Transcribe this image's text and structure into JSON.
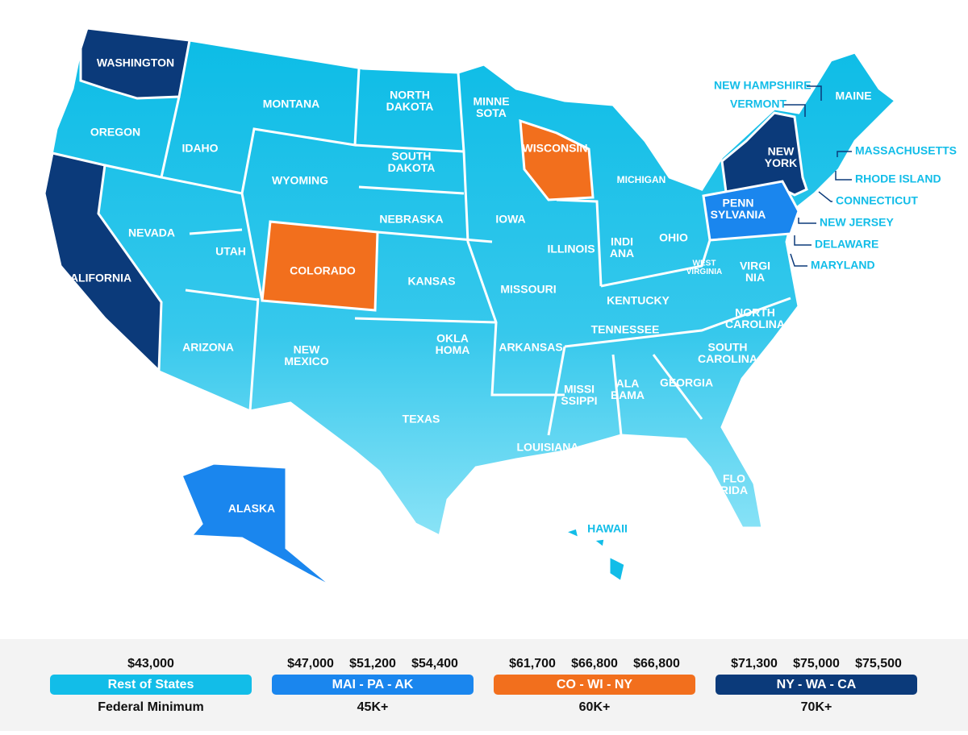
{
  "map": {
    "states": [
      {
        "lines": [
          "WASHINGTON"
        ]
      },
      {
        "lines": [
          "OREGON"
        ]
      },
      {
        "lines": [
          "CALIFORNIA"
        ]
      },
      {
        "lines": [
          "IDAHO"
        ]
      },
      {
        "lines": [
          "NEVADA"
        ]
      },
      {
        "lines": [
          "MONTANA"
        ]
      },
      {
        "lines": [
          "WYOMING"
        ]
      },
      {
        "lines": [
          "UTAH"
        ]
      },
      {
        "lines": [
          "ARIZONA"
        ]
      },
      {
        "lines": [
          "COLORADO"
        ]
      },
      {
        "lines": [
          "NEW",
          "MEXICO"
        ]
      },
      {
        "lines": [
          "NORTH",
          "DAKOTA"
        ]
      },
      {
        "lines": [
          "SOUTH",
          "DAKOTA"
        ]
      },
      {
        "lines": [
          "NEBRASKA"
        ]
      },
      {
        "lines": [
          "KANSAS"
        ]
      },
      {
        "lines": [
          "OKLA",
          "HOMA"
        ]
      },
      {
        "lines": [
          "TEXAS"
        ]
      },
      {
        "lines": [
          "MINNE",
          "SOTA"
        ]
      },
      {
        "lines": [
          "IOWA"
        ]
      },
      {
        "lines": [
          "MISSOURI"
        ]
      },
      {
        "lines": [
          "ARKANSAS"
        ]
      },
      {
        "lines": [
          "LOUISIANA"
        ]
      },
      {
        "lines": [
          "WISCONSIN"
        ]
      },
      {
        "lines": [
          "ILLINOIS"
        ]
      },
      {
        "lines": [
          "MICHIGAN"
        ]
      },
      {
        "lines": [
          "INDI",
          "ANA"
        ]
      },
      {
        "lines": [
          "OHIO"
        ]
      },
      {
        "lines": [
          "KENTUCKY"
        ]
      },
      {
        "lines": [
          "TENNESSEE"
        ]
      },
      {
        "lines": [
          "MISSI",
          "SSIPPI"
        ]
      },
      {
        "lines": [
          "ALA",
          "BAMA"
        ]
      },
      {
        "lines": [
          "GEORGIA"
        ]
      },
      {
        "lines": [
          "FLO",
          "RIDA"
        ]
      },
      {
        "lines": [
          "SOUTH",
          "CAROLINA"
        ]
      },
      {
        "lines": [
          "NORTH",
          "CAROLINA"
        ]
      },
      {
        "lines": [
          "VIRGI",
          "NIA"
        ]
      },
      {
        "lines": [
          "WEST",
          "VIRGINIA"
        ]
      },
      {
        "lines": [
          "PENN",
          "SYLVANIA"
        ]
      },
      {
        "lines": [
          "NEW",
          "YORK"
        ]
      },
      {
        "lines": [
          "MAINE"
        ]
      },
      {
        "lines": [
          "ALASKA"
        ]
      },
      {
        "lines": [
          "HAWAII"
        ]
      }
    ],
    "callouts": [
      "NEW HAMPSHIRE",
      "VERMONT",
      "MASSACHUSETTS",
      "RHODE ISLAND",
      "CONNECTICUT",
      "NEW JERSEY",
      "DELAWARE",
      "MARYLAND"
    ]
  },
  "legend": [
    {
      "values": [
        "$43,000"
      ],
      "label": "Rest of States",
      "caption": "Federal Minimum"
    },
    {
      "values": [
        "$47,000",
        "$51,200",
        "$54,400"
      ],
      "label": "MAI - PA - AK",
      "caption": "45K+"
    },
    {
      "values": [
        "$61,700",
        "$66,800",
        "$66,800"
      ],
      "label": "CO - WI - NY",
      "caption": "60K+"
    },
    {
      "values": [
        "$71,300",
        "$75,000",
        "$75,500"
      ],
      "label": "NY - WA - CA",
      "caption": "70K+"
    }
  ]
}
